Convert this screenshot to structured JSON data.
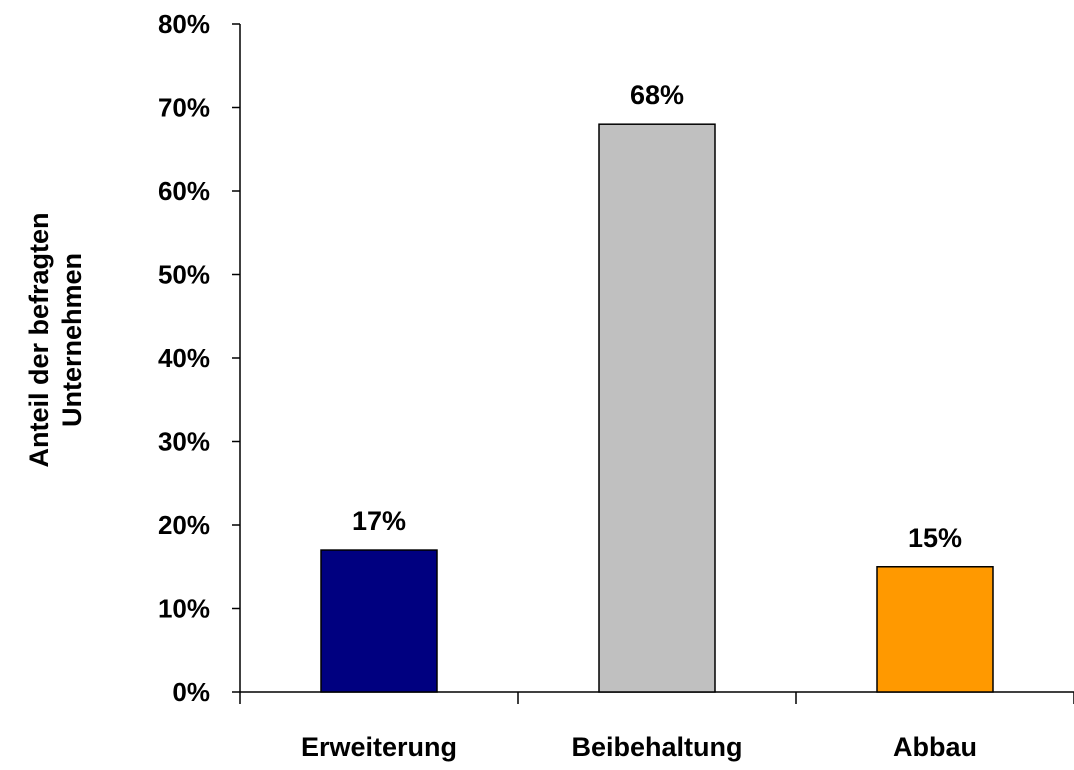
{
  "chart_data": {
    "type": "bar",
    "categories": [
      "Erweiterung",
      "Beibehaltung",
      "Abbau"
    ],
    "values": [
      17,
      68,
      15
    ],
    "value_labels": [
      "17%",
      "68%",
      "15%"
    ],
    "colors": [
      "#000080",
      "#C0C0C0",
      "#FF9900"
    ],
    "ylabel_lines": [
      "Anteil der befragten",
      "Unternehmen"
    ],
    "ylim": [
      0,
      80
    ],
    "yticks": [
      0,
      10,
      20,
      30,
      40,
      50,
      60,
      70,
      80
    ],
    "ytick_labels": [
      "0%",
      "10%",
      "20%",
      "30%",
      "40%",
      "50%",
      "60%",
      "70%",
      "80%"
    ],
    "grid": false,
    "legend": "none"
  }
}
